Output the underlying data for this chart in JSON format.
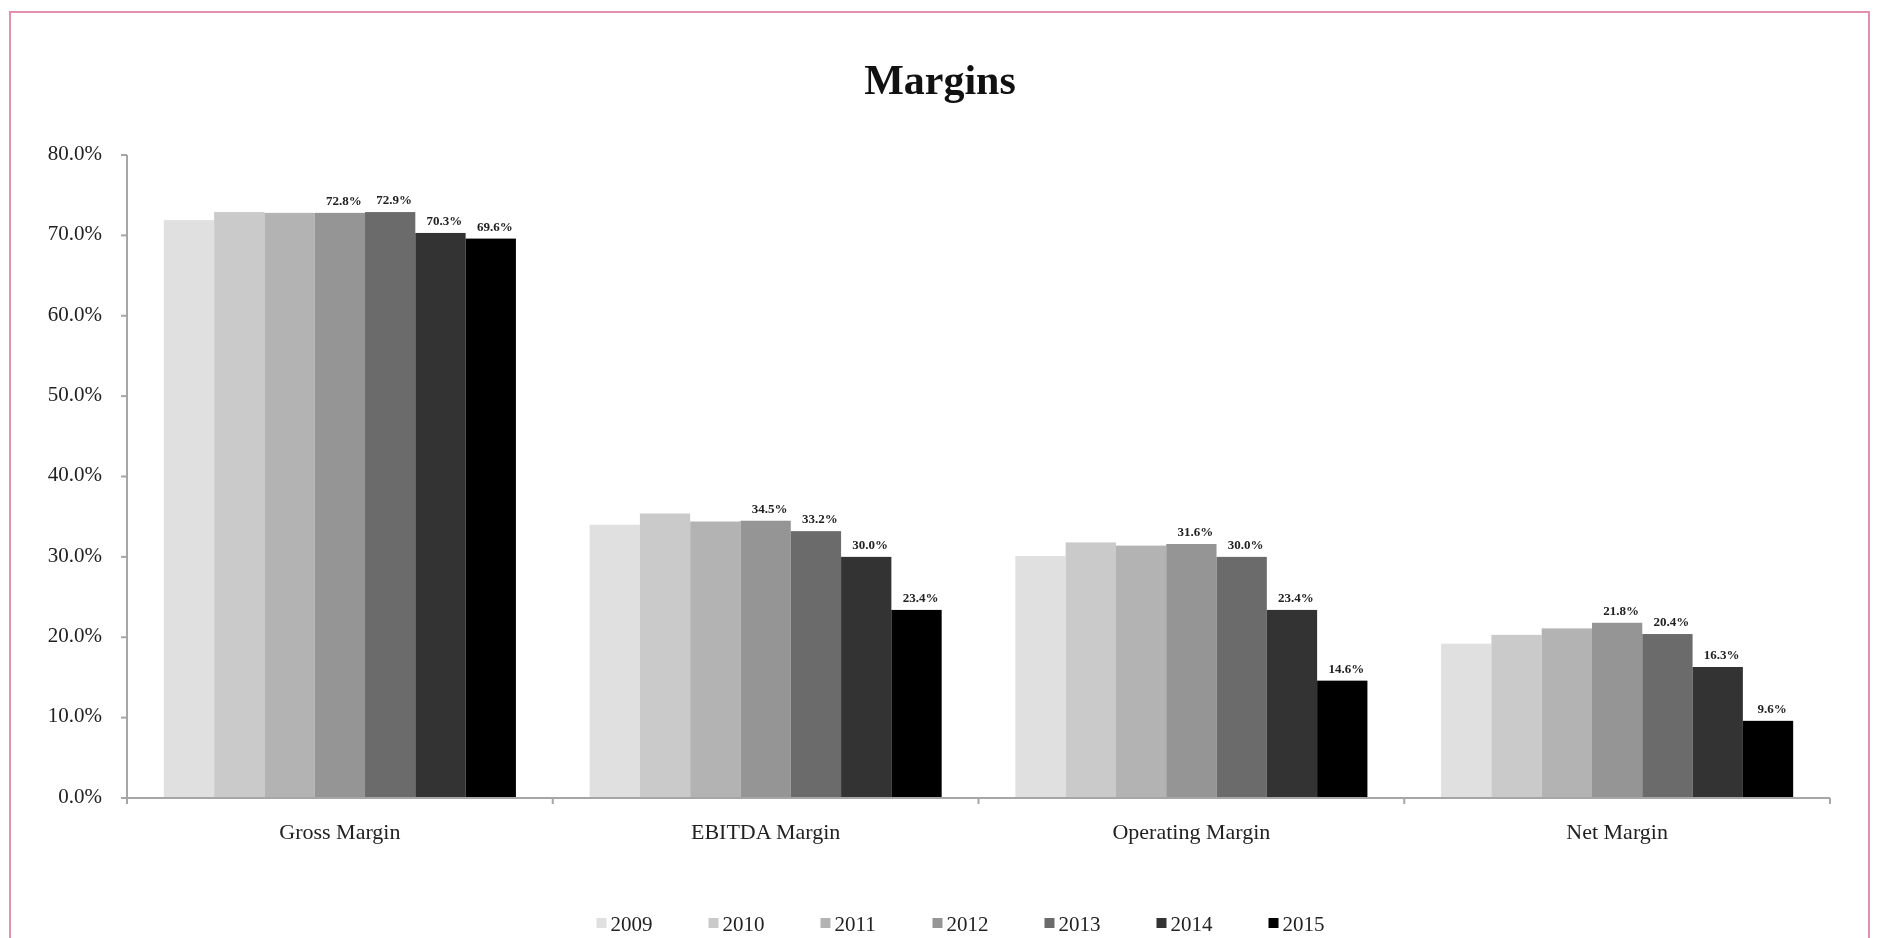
{
  "chart_data": {
    "type": "bar",
    "title": "Margins",
    "categories": [
      "Gross Margin",
      "EBITDA Margin",
      "Operating Margin",
      "Net Margin"
    ],
    "series": [
      {
        "name": "2009",
        "color": "#e0e0e0",
        "values": [
          71.9,
          34.0,
          30.1,
          19.2
        ]
      },
      {
        "name": "2010",
        "color": "#cacaca",
        "values": [
          72.9,
          35.4,
          31.8,
          20.3
        ]
      },
      {
        "name": "2011",
        "color": "#b3b3b3",
        "values": [
          72.8,
          34.4,
          31.4,
          21.1
        ]
      },
      {
        "name": "2012",
        "color": "#959595",
        "values": [
          72.8,
          34.5,
          31.6,
          21.8
        ],
        "value_labels": [
          "72.8%",
          "34.5%",
          "31.6%",
          "21.8%"
        ]
      },
      {
        "name": "2013",
        "color": "#6b6b6b",
        "values": [
          72.9,
          33.2,
          30.0,
          20.4
        ],
        "value_labels": [
          "72.9%",
          "33.2%",
          "30.0%",
          "20.4%"
        ]
      },
      {
        "name": "2014",
        "color": "#333333",
        "values": [
          70.3,
          30.0,
          23.4,
          16.3
        ],
        "value_labels": [
          "70.3%",
          "30.0%",
          "23.4%",
          "16.3%"
        ]
      },
      {
        "name": "2015",
        "color": "#000000",
        "values": [
          69.6,
          23.4,
          14.6,
          9.6
        ],
        "value_labels": [
          "69.6%",
          "23.4%",
          "14.6%",
          "9.6%"
        ]
      }
    ],
    "ylim": [
      0,
      80
    ],
    "yticks": [
      {
        "value": 0,
        "label": "0.0%"
      },
      {
        "value": 10,
        "label": "10.0%"
      },
      {
        "value": 20,
        "label": "20.0%"
      },
      {
        "value": 30,
        "label": "30.0%"
      },
      {
        "value": 40,
        "label": "40.0%"
      },
      {
        "value": 50,
        "label": "50.0%"
      },
      {
        "value": 60,
        "label": "60.0%"
      },
      {
        "value": 70,
        "label": "70.0%"
      },
      {
        "value": 80,
        "label": "80.0%"
      }
    ],
    "grid": false,
    "legend": "bottom"
  }
}
